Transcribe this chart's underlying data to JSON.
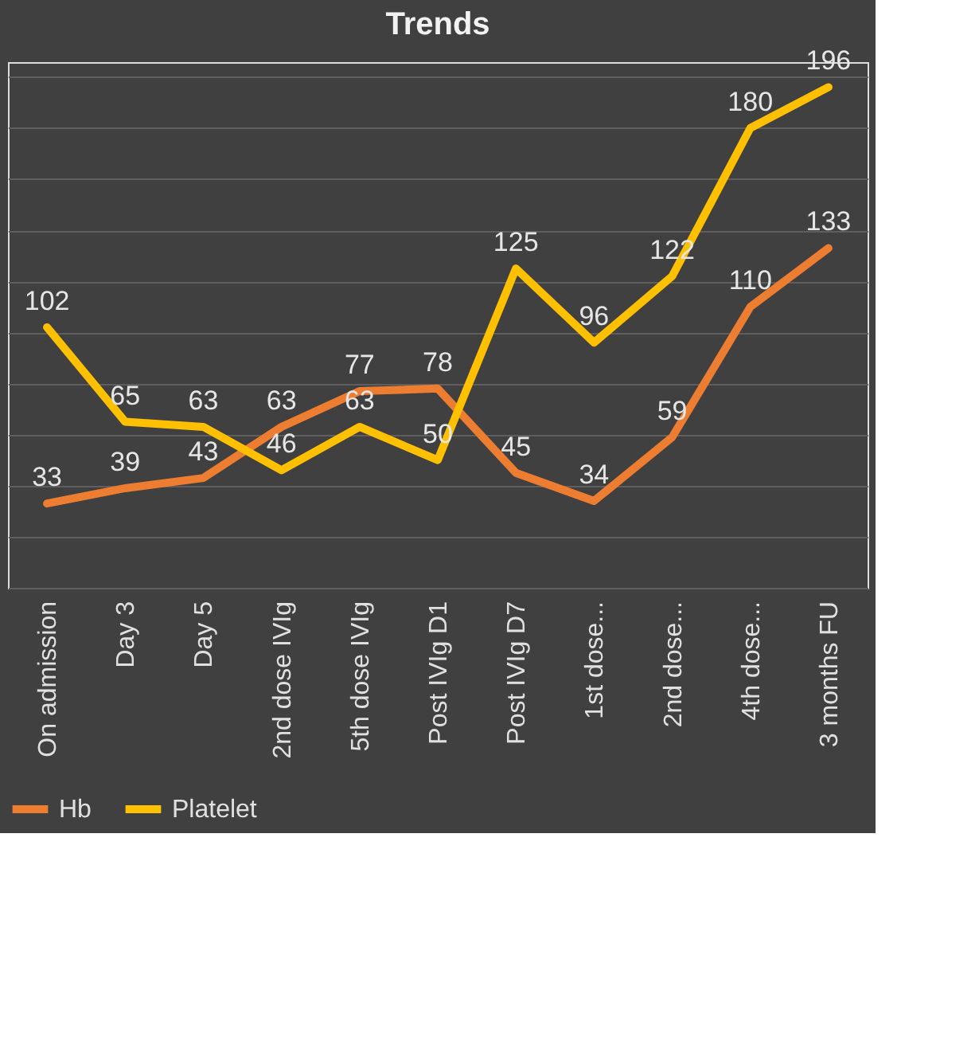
{
  "chart_data": {
    "type": "line",
    "title": "Trends",
    "categories": [
      "On admission",
      "Day 3",
      "Day 5",
      "2nd dose IVIg",
      "5th dose IVIg",
      "Post IVIg D1",
      "Post IVIg D7",
      "1st dose...",
      "2nd dose...",
      "4th dose...",
      "3 months FU"
    ],
    "series": [
      {
        "name": "Hb",
        "color": "#ed7d31",
        "values": [
          33,
          39,
          43,
          63,
          77,
          78,
          45,
          34,
          59,
          110,
          133
        ]
      },
      {
        "name": "Platelet",
        "color": "#ffc000",
        "values": [
          102,
          65,
          63,
          46,
          63,
          50,
          125,
          96,
          122,
          180,
          196
        ]
      }
    ],
    "data_labels": true,
    "grid": "y",
    "legend": "bottom",
    "tick_labels": "x",
    "marker": "none",
    "line_style": "solid"
  }
}
